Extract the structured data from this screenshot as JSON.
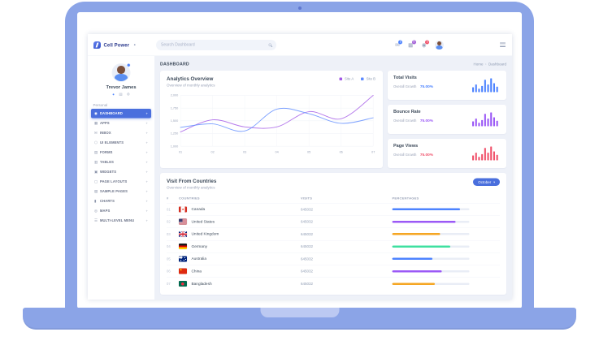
{
  "brand": {
    "name": "Cell Power",
    "toggle_glyph": "•"
  },
  "navbar": {
    "search": {
      "placeholder": "Search Dashboard"
    },
    "icons": [
      {
        "name": "email",
        "glyph": "✉",
        "badge": "2",
        "badge_color": "#4d83ff"
      },
      {
        "name": "calendar",
        "glyph": "▦",
        "badge": "5",
        "badge_color": "#a461d8"
      },
      {
        "name": "notifications",
        "glyph": "◉",
        "badge": "3",
        "badge_color": "#f0536c"
      }
    ]
  },
  "sidebar": {
    "user": {
      "name": "Trevor James",
      "icons": [
        {
          "name": "chat-status",
          "glyph": "●"
        },
        {
          "name": "briefcase",
          "glyph": "▤"
        },
        {
          "name": "gear",
          "glyph": "⚙"
        }
      ]
    },
    "section": "Personal",
    "expand_glyph": "+",
    "items": [
      {
        "label": "DASHBOARD",
        "glyph": "◉",
        "active": true
      },
      {
        "label": "APPS",
        "glyph": "▦"
      },
      {
        "label": "INBOX",
        "glyph": "✉"
      },
      {
        "label": "UI ELEMENTS",
        "glyph": "⬡"
      },
      {
        "label": "FORMS",
        "glyph": "▤"
      },
      {
        "label": "TABLES",
        "glyph": "▥"
      },
      {
        "label": "WIDGETS",
        "glyph": "▣"
      },
      {
        "label": "PAGE LAYOUTS",
        "glyph": "▢"
      },
      {
        "label": "SAMPLE PAGES",
        "glyph": "▧"
      },
      {
        "label": "CHARTS",
        "glyph": "▮"
      },
      {
        "label": "MAPS",
        "glyph": "◎"
      },
      {
        "label": "MULTI-LEVEL MENU",
        "glyph": "☰"
      }
    ]
  },
  "page": {
    "title": "DASHBOARD",
    "breadcrumb_home": "Home",
    "breadcrumb_sep": "›",
    "breadcrumb_current": "Dashboard"
  },
  "analytics": {
    "title": "Analytics Overview",
    "subtitle": "Overview of monthly analytics"
  },
  "stats": [
    {
      "title": "Total Visits",
      "label": "Overall Growth",
      "value": "75.00%",
      "color": "#4d83ff"
    },
    {
      "title": "Bounce Rate",
      "label": "Overall Growth",
      "value": "75.00%",
      "color": "#9b59f6"
    },
    {
      "title": "Page Views",
      "label": "Overall Growth",
      "value": "75.00%",
      "color": "#f0536c"
    }
  ],
  "countries": {
    "title": "Visit From Countries",
    "subtitle": "Overview of monthly analytics",
    "filter_label": "October",
    "filter_caret": "▾",
    "columns": [
      "#",
      "COUNTRIES",
      "VISITS",
      "PERCENTAGES"
    ],
    "rows": [
      {
        "index": "01",
        "flag": "ca",
        "country": "Canada",
        "visits": "645032",
        "pct": 88,
        "color": "#4d83ff"
      },
      {
        "index": "02",
        "flag": "us",
        "country": "United States",
        "visits": "645032",
        "pct": 82,
        "color": "#9b59f6"
      },
      {
        "index": "03",
        "flag": "gb",
        "country": "United Kingdom",
        "visits": "645032",
        "pct": 62,
        "color": "#f5a623"
      },
      {
        "index": "04",
        "flag": "de",
        "country": "Germany",
        "visits": "645032",
        "pct": 75,
        "color": "#3fe0a0"
      },
      {
        "index": "05",
        "flag": "au",
        "country": "Australia",
        "visits": "645032",
        "pct": 52,
        "color": "#4d83ff"
      },
      {
        "index": "06",
        "flag": "cn",
        "country": "China",
        "visits": "645032",
        "pct": 64,
        "color": "#9b59f6"
      },
      {
        "index": "07",
        "flag": "bd",
        "country": "Bangladesh",
        "visits": "645032",
        "pct": 55,
        "color": "#f5a623"
      }
    ]
  },
  "chart_data": [
    {
      "id": "analytics-overview",
      "type": "line",
      "title": "Analytics Overview",
      "x": [
        "01",
        "02",
        "03",
        "04",
        "05",
        "06",
        "07"
      ],
      "series": [
        {
          "name": "Site A",
          "color": "#a259e6",
          "values": [
            1280,
            1520,
            1380,
            1380,
            1680,
            1540,
            2000
          ]
        },
        {
          "name": "Site B",
          "color": "#5e8bff",
          "values": [
            1370,
            1440,
            1300,
            1730,
            1640,
            1450,
            1560
          ]
        }
      ],
      "ylim": [
        1000,
        2000
      ],
      "yticks": [
        "2,000",
        "1,750",
        "1,500",
        "1,250",
        "1,000"
      ],
      "grid": true,
      "legend_position": "top-right"
    },
    {
      "id": "total-visits-spark",
      "type": "bar",
      "color": "#4d83ff",
      "values": [
        35,
        55,
        25,
        45,
        90,
        55,
        100,
        65,
        40
      ]
    },
    {
      "id": "bounce-rate-spark",
      "type": "bar",
      "color": "#9b59f6",
      "values": [
        35,
        55,
        25,
        45,
        90,
        55,
        100,
        65,
        40
      ]
    },
    {
      "id": "page-views-spark",
      "type": "bar",
      "color": "#f0536c",
      "values": [
        35,
        55,
        25,
        45,
        90,
        55,
        100,
        65,
        40
      ]
    }
  ]
}
